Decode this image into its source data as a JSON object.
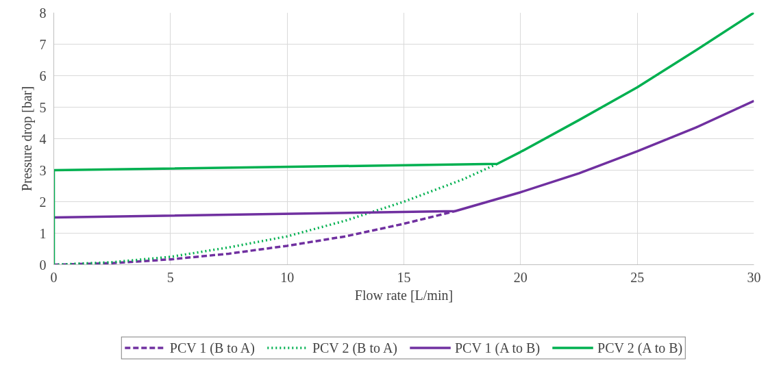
{
  "chart_data": {
    "type": "line",
    "xlabel": "Flow rate [L/min]",
    "ylabel": "Pressure drop [bar]",
    "xlim": [
      0,
      30
    ],
    "xticks": [
      0,
      5,
      10,
      15,
      20,
      25,
      30
    ],
    "ylim": [
      0,
      8
    ],
    "yticks": [
      0,
      1,
      2,
      3,
      4,
      5,
      6,
      7,
      8
    ],
    "grid": true,
    "legend": "bottom",
    "marker": "none",
    "series": [
      {
        "name": "PCV 1 (B to A)",
        "color": "#7030a0",
        "line_style": "dashed",
        "x": [
          0,
          2.5,
          5,
          7.5,
          10,
          12.5,
          15,
          17.2
        ],
        "values": [
          0,
          0.05,
          0.17,
          0.35,
          0.6,
          0.9,
          1.3,
          1.7
        ]
      },
      {
        "name": "PCV 2 (B to A)",
        "color": "#00b050",
        "line_style": "dotted",
        "x": [
          0,
          2.5,
          5,
          7.5,
          10,
          12.5,
          15,
          17.5,
          19
        ],
        "values": [
          0,
          0.08,
          0.25,
          0.55,
          0.9,
          1.4,
          2.0,
          2.7,
          3.2
        ]
      },
      {
        "name": "PCV 1 (A to B)",
        "color": "#7030a0",
        "line_style": "solid",
        "x": [
          0,
          17.2,
          20,
          22.5,
          25,
          27.5,
          30
        ],
        "values": [
          1.5,
          1.7,
          2.3,
          2.9,
          3.6,
          4.35,
          5.2
        ]
      },
      {
        "name": "PCV 2 (A to B)",
        "color": "#00b050",
        "line_style": "solid",
        "x": [
          0,
          0,
          19,
          20,
          22.5,
          25,
          27.5,
          30
        ],
        "values": [
          0,
          3.0,
          3.2,
          3.58,
          4.59,
          5.63,
          6.8,
          8.0
        ]
      }
    ]
  }
}
